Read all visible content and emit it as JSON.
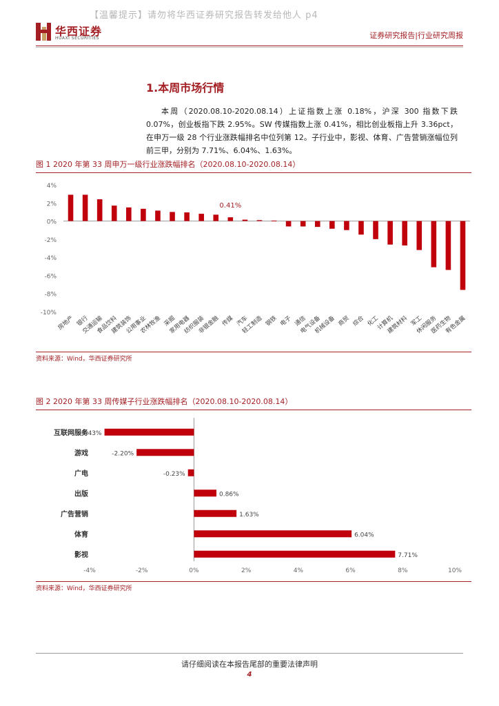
{
  "header": {
    "watermark": "【温馨提示】请勿将华西证券研究报告转发给他人 p4",
    "logo_cn": "华西证券",
    "logo_en": "HUAXI SECURITIES",
    "report_type": "证券研究报告|行业研究周报"
  },
  "section": {
    "title": "1.本周市场行情",
    "paragraph": "本周（2020.08.10-2020.08.14）上证指数上涨 0.18%，沪深 300 指数下跌 0.07%，创业板指下跌 2.95%。SW 传媒指数上涨 0.41%，相比创业板指上升 3.36pct，在申万一级 28 个行业涨跌幅排名中位列第 12。子行业中，影视、体育、广告营销涨幅位列前三甲，分别为 7.71%、6.04%、1.63%。"
  },
  "figure1": {
    "title": "图 1 2020 年第 33 周申万一级行业涨跌幅排名（2020.08.10-2020.08.14）",
    "source": "资料来源：Wind，华西证券研究所",
    "highlight_label": "0.41%"
  },
  "figure2": {
    "title": "图 2 2020 年第 33 周传媒子行业涨跌幅排名（2020.08.10-2020.08.14）",
    "source": "资料来源：Wind，华西证券研究所"
  },
  "footer": {
    "disclaimer": "请仔细阅读在本报告尾部的重要法律声明",
    "page": "4"
  },
  "colors": {
    "accent": "#a31f24",
    "bar": "#c0000b"
  },
  "chart_data": [
    {
      "type": "bar",
      "title": "图 1 2020 年第 33 周申万一级行业涨跌幅排名（2020.08.10-2020.08.14）",
      "categories": [
        "房地产",
        "银行",
        "交通运输",
        "食品饮料",
        "建筑装饰",
        "公用事业",
        "农林牧渔",
        "采掘",
        "家用电器",
        "纺织服装",
        "非银金融",
        "传媒",
        "汽车",
        "轻工制造",
        "钢铁",
        "电子",
        "通信",
        "电气设备",
        "机械设备",
        "商贸",
        "综合",
        "化工",
        "计算机",
        "建筑材料",
        "军工",
        "休闲服务",
        "医药生物",
        "有色金属"
      ],
      "values": [
        2.9,
        2.9,
        2.4,
        1.7,
        1.5,
        1.35,
        1.15,
        1.0,
        0.95,
        0.8,
        0.7,
        0.41,
        0.15,
        0.1,
        0.05,
        -0.6,
        -0.6,
        -0.65,
        -0.85,
        -1.0,
        -1.5,
        -2.0,
        -2.6,
        -2.7,
        -3.2,
        -5.1,
        -5.4,
        -7.6
      ],
      "highlight_index": 11,
      "ylim": [
        -10,
        4
      ],
      "yticks": [
        "4%",
        "2%",
        "0%",
        "-2%",
        "-4%",
        "-6%",
        "-8%",
        "-10%"
      ],
      "xlabel": "",
      "ylabel": ""
    },
    {
      "type": "bar",
      "orientation": "horizontal",
      "title": "图 2 2020 年第 33 周传媒子行业涨跌幅排名（2020.08.10-2020.08.14）",
      "categories": [
        "互联网服务",
        "游戏",
        "广电",
        "出版",
        "广告营销",
        "体育",
        "影视"
      ],
      "values": [
        -3.43,
        -2.2,
        -0.23,
        0.86,
        1.63,
        6.04,
        7.71
      ],
      "labels": [
        "-3.43%",
        "-2.20%",
        "-0.23%",
        "0.86%",
        "1.63%",
        "6.04%",
        "7.71%"
      ],
      "xlim": [
        -4,
        10
      ],
      "xticks": [
        "-4%",
        "-2%",
        "0%",
        "2%",
        "4%",
        "6%",
        "8%",
        "10%"
      ]
    }
  ]
}
